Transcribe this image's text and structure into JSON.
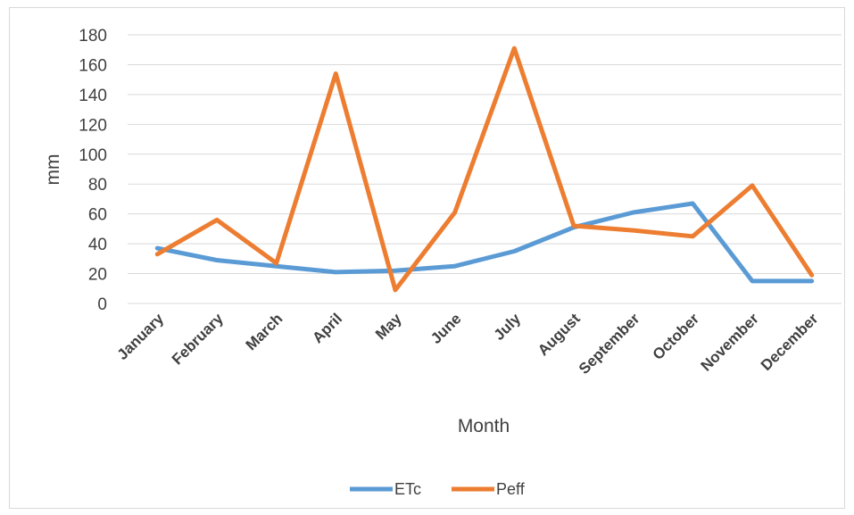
{
  "chart_data": {
    "type": "line",
    "title": "",
    "xlabel": "Month",
    "ylabel": "mm",
    "ylim": [
      0,
      180
    ],
    "yticks": [
      0,
      20,
      40,
      60,
      80,
      100,
      120,
      140,
      160,
      180
    ],
    "grid": true,
    "legend_position": "bottom",
    "categories": [
      "January",
      "February",
      "March",
      "April",
      "May",
      "June",
      "July",
      "August",
      "September",
      "October",
      "November",
      "December"
    ],
    "series": [
      {
        "name": "ETc",
        "color": "#5b9bd5",
        "values": [
          37,
          29,
          25,
          21,
          22,
          25,
          35,
          51,
          61,
          67,
          15,
          15
        ]
      },
      {
        "name": "Peff",
        "color": "#ed7d31",
        "values": [
          33,
          56,
          27,
          154,
          9,
          61,
          171,
          52,
          49,
          45,
          79,
          19
        ]
      }
    ]
  }
}
